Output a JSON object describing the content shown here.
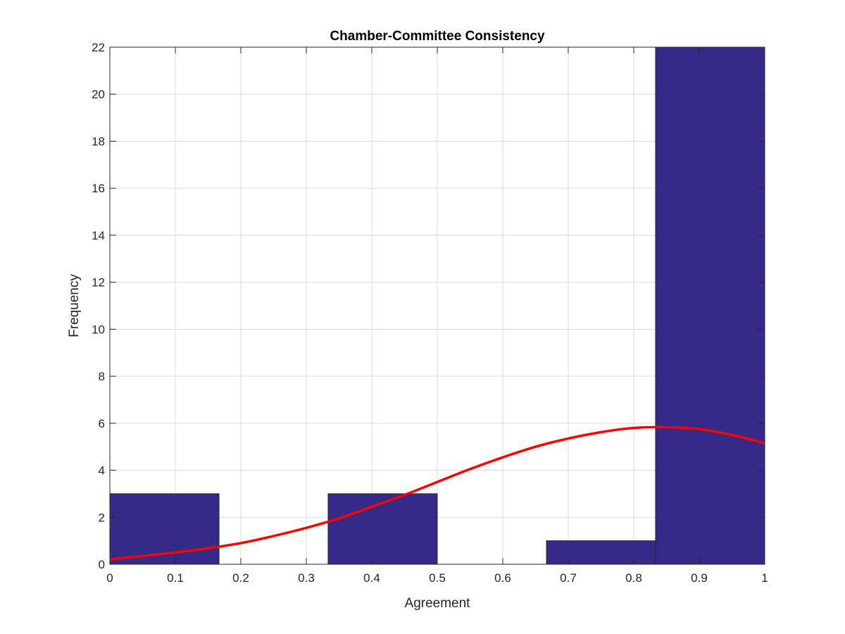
{
  "chart_data": {
    "type": "bar",
    "title": "Chamber-Committee Consistency",
    "xlabel": "Agreement",
    "ylabel": "Frequency",
    "xlim": [
      0,
      1
    ],
    "ylim": [
      0,
      22
    ],
    "xticks": [
      "0",
      "0.1",
      "0.2",
      "0.3",
      "0.4",
      "0.5",
      "0.6",
      "0.7",
      "0.8",
      "0.9",
      "1"
    ],
    "yticks": [
      "0",
      "2",
      "4",
      "6",
      "8",
      "10",
      "12",
      "14",
      "16",
      "18",
      "20",
      "22"
    ],
    "grid": true,
    "bins": [
      {
        "x0": 0.0,
        "x1": 0.1667,
        "value": 3
      },
      {
        "x0": 0.1667,
        "x1": 0.3333,
        "value": 0
      },
      {
        "x0": 0.3333,
        "x1": 0.5,
        "value": 3
      },
      {
        "x0": 0.5,
        "x1": 0.6667,
        "value": 0
      },
      {
        "x0": 0.6667,
        "x1": 0.8333,
        "value": 1
      },
      {
        "x0": 0.8333,
        "x1": 1.0,
        "value": 22
      }
    ],
    "fit_curve": {
      "type": "normal",
      "x": [
        0,
        0.05,
        0.1,
        0.15,
        0.2,
        0.25,
        0.3,
        0.35,
        0.4,
        0.45,
        0.5,
        0.55,
        0.6,
        0.65,
        0.7,
        0.75,
        0.8,
        0.85,
        0.9,
        0.95,
        1.0
      ],
      "y": [
        0.2,
        0.35,
        0.5,
        0.68,
        0.9,
        1.2,
        1.55,
        1.95,
        2.45,
        2.95,
        3.5,
        4.05,
        4.55,
        5.0,
        5.35,
        5.62,
        5.8,
        5.83,
        5.75,
        5.5,
        5.15
      ]
    },
    "colors": {
      "bar_fill": "#352A87",
      "bar_edge": "#262626",
      "fit_line": "#FF0000",
      "grid": "#DBDBDB",
      "axis": "#262626"
    }
  }
}
